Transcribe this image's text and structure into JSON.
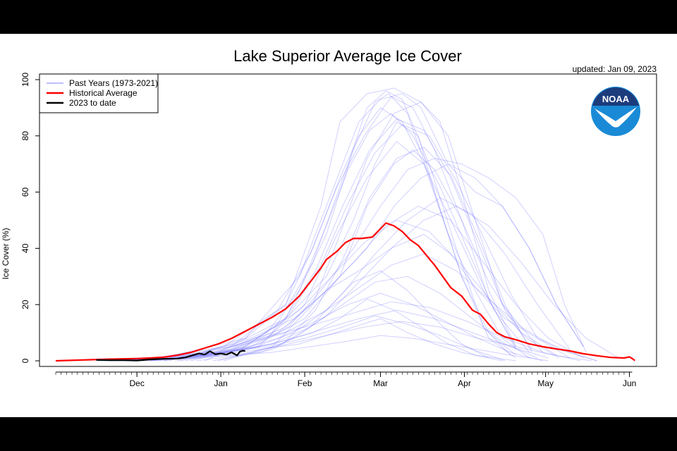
{
  "chart_data": {
    "type": "line",
    "title": "Lake Superior Average Ice Cover",
    "updated": "updated: Jan 09, 2023",
    "ylabel": "Ice Cover (%)",
    "xlabel": "",
    "ylim": [
      0,
      100
    ],
    "y_ticks": [
      0,
      20,
      40,
      60,
      80,
      100
    ],
    "x_ticks": [
      {
        "label": "Dec",
        "day": 30
      },
      {
        "label": "Jan",
        "day": 61
      },
      {
        "label": "Feb",
        "day": 92
      },
      {
        "label": "Mar",
        "day": 120
      },
      {
        "label": "Apr",
        "day": 151
      },
      {
        "label": "May",
        "day": 181
      },
      {
        "label": "Jun",
        "day": 212
      }
    ],
    "legend_position": "top-left",
    "legend": [
      {
        "label": "Past Years (1973-2021)",
        "color": "#aaaaff"
      },
      {
        "label": "Historical Average",
        "color": "#ff0000"
      },
      {
        "label": "2023 to date",
        "color": "#000000"
      }
    ],
    "logo": "noaa-logo",
    "series": [
      {
        "name": "Historical Average",
        "color": "#ff0000",
        "x": [
          0,
          10,
          20,
          30,
          35,
          40,
          45,
          50,
          55,
          60,
          65,
          70,
          75,
          80,
          85,
          90,
          94,
          98,
          100,
          104,
          107,
          110,
          113,
          117,
          120,
          122,
          125,
          128,
          131,
          134,
          137,
          140,
          143,
          146,
          150,
          154,
          157,
          160,
          163,
          166,
          170,
          175,
          180,
          185,
          190,
          195,
          200,
          205,
          210,
          212,
          213,
          214
        ],
        "y": [
          0,
          0.3,
          0.6,
          0.8,
          1.0,
          1.3,
          2.0,
          3.0,
          4.5,
          6.0,
          8.0,
          10.5,
          13.0,
          15.5,
          18.5,
          23.0,
          28.0,
          33.0,
          36.0,
          39.0,
          42.0,
          43.5,
          43.5,
          44.0,
          47.0,
          49.0,
          48.0,
          46.0,
          43.0,
          41.0,
          37.5,
          34.0,
          30.0,
          26.0,
          23.0,
          18.0,
          16.5,
          13.0,
          10.0,
          8.5,
          7.5,
          6.0,
          5.0,
          4.2,
          3.5,
          2.5,
          1.8,
          1.2,
          1.0,
          1.4,
          0.8,
          0.1
        ]
      },
      {
        "name": "2023 to date",
        "color": "#000000",
        "x": [
          15,
          20,
          25,
          30,
          35,
          40,
          45,
          48,
          50,
          53,
          55,
          57,
          59,
          61,
          63,
          65,
          67,
          68,
          69,
          70
        ],
        "y": [
          0.3,
          0.2,
          0.2,
          0.1,
          0.5,
          0.7,
          0.8,
          1.2,
          1.8,
          2.6,
          2.2,
          3.4,
          2.3,
          2.6,
          2.2,
          3.0,
          1.9,
          3.2,
          3.6,
          3.5
        ]
      }
    ],
    "past_years": [
      {
        "x": [
          25,
          60,
          85,
          100,
          110,
          118,
          123,
          130,
          140,
          150,
          160,
          170
        ],
        "y": [
          0,
          3,
          15,
          45,
          75,
          92,
          95,
          88,
          60,
          30,
          8,
          1
        ]
      },
      {
        "x": [
          20,
          55,
          80,
          95,
          108,
          115,
          122,
          128,
          138,
          148,
          158,
          168
        ],
        "y": [
          0,
          2,
          10,
          35,
          70,
          90,
          96,
          93,
          70,
          40,
          12,
          2
        ]
      },
      {
        "x": [
          30,
          62,
          85,
          98,
          105,
          115,
          125,
          135,
          145,
          155,
          165,
          180
        ],
        "y": [
          0,
          5,
          20,
          55,
          85,
          95,
          97,
          92,
          80,
          50,
          20,
          3
        ]
      },
      {
        "x": [
          35,
          70,
          90,
          102,
          112,
          120,
          128,
          135,
          145,
          155,
          165,
          175,
          185,
          195
        ],
        "y": [
          0,
          8,
          30,
          60,
          85,
          93,
          95,
          90,
          70,
          60,
          55,
          40,
          20,
          5
        ]
      },
      {
        "x": [
          40,
          75,
          88,
          100,
          110,
          118,
          126,
          134,
          140,
          150,
          160,
          170
        ],
        "y": [
          0,
          5,
          18,
          30,
          50,
          70,
          85,
          80,
          60,
          30,
          10,
          2
        ]
      },
      {
        "x": [
          30,
          65,
          85,
          100,
          115,
          125,
          135,
          145,
          155,
          165,
          175,
          185,
          195
        ],
        "y": [
          0,
          4,
          12,
          25,
          40,
          55,
          65,
          70,
          65,
          55,
          40,
          20,
          5
        ]
      },
      {
        "x": [
          25,
          50,
          70,
          85,
          100,
          110,
          120,
          130,
          140,
          150,
          160
        ],
        "y": [
          0,
          2,
          6,
          10,
          18,
          28,
          32,
          25,
          15,
          6,
          1
        ]
      },
      {
        "x": [
          20,
          45,
          65,
          80,
          95,
          105,
          115,
          125,
          135,
          145,
          155,
          170
        ],
        "y": [
          0,
          1,
          3,
          6,
          10,
          15,
          22,
          18,
          12,
          6,
          2,
          0
        ]
      },
      {
        "x": [
          15,
          40,
          60,
          75,
          90,
          100,
          110,
          120,
          130,
          140,
          150,
          165
        ],
        "y": [
          0,
          1,
          2,
          4,
          6,
          9,
          12,
          15,
          10,
          6,
          3,
          0
        ]
      },
      {
        "x": [
          45,
          70,
          85,
          95,
          105,
          112,
          120,
          128,
          136,
          145,
          155,
          165,
          175
        ],
        "y": [
          0,
          8,
          20,
          40,
          65,
          80,
          90,
          85,
          70,
          45,
          25,
          8,
          1
        ]
      },
      {
        "x": [
          50,
          75,
          92,
          105,
          115,
          125,
          132,
          140,
          150,
          160,
          172,
          185
        ],
        "y": [
          0,
          6,
          15,
          30,
          55,
          70,
          75,
          68,
          50,
          28,
          10,
          2
        ]
      },
      {
        "x": [
          28,
          55,
          72,
          88,
          100,
          112,
          124,
          136,
          146,
          156,
          166,
          178,
          190,
          200
        ],
        "y": [
          0,
          3,
          8,
          15,
          25,
          32,
          40,
          45,
          38,
          25,
          15,
          8,
          3,
          0
        ]
      },
      {
        "x": [
          35,
          60,
          78,
          92,
          104,
          115,
          126,
          136,
          146,
          158,
          170
        ],
        "y": [
          0,
          2,
          8,
          20,
          45,
          65,
          78,
          70,
          50,
          25,
          5
        ]
      },
      {
        "x": [
          22,
          48,
          68,
          82,
          96,
          108,
          120,
          132,
          144,
          156,
          168,
          180
        ],
        "y": [
          0,
          1,
          4,
          8,
          14,
          20,
          24,
          20,
          14,
          8,
          3,
          0
        ]
      },
      {
        "x": [
          60,
          80,
          95,
          105,
          115,
          125,
          135,
          142,
          150,
          160,
          170
        ],
        "y": [
          0,
          5,
          20,
          45,
          72,
          88,
          92,
          85,
          60,
          25,
          5
        ]
      },
      {
        "x": [
          40,
          65,
          82,
          97,
          110,
          122,
          134,
          146,
          158,
          170,
          182,
          195
        ],
        "y": [
          0,
          4,
          10,
          22,
          35,
          48,
          55,
          50,
          35,
          20,
          8,
          1
        ]
      },
      {
        "x": [
          18,
          42,
          62,
          78,
          92,
          106,
          118,
          130,
          142,
          154,
          166
        ],
        "y": [
          0,
          1,
          3,
          5,
          8,
          12,
          16,
          13,
          9,
          4,
          0
        ]
      },
      {
        "x": [
          55,
          78,
          90,
          100,
          108,
          116,
          124,
          132,
          142,
          152,
          162,
          175
        ],
        "y": [
          0,
          10,
          25,
          48,
          68,
          82,
          88,
          80,
          62,
          40,
          18,
          3
        ]
      },
      {
        "x": [
          32,
          58,
          74,
          88,
          100,
          112,
          124,
          136,
          148,
          160,
          172,
          186,
          200
        ],
        "y": [
          0,
          2,
          5,
          10,
          18,
          26,
          34,
          38,
          32,
          22,
          12,
          4,
          0
        ]
      },
      {
        "x": [
          48,
          72,
          86,
          98,
          110,
          120,
          130,
          140,
          150,
          160,
          170,
          180,
          188,
          196
        ],
        "y": [
          0,
          5,
          12,
          25,
          40,
          55,
          68,
          72,
          70,
          65,
          58,
          45,
          20,
          3
        ]
      },
      {
        "x": [
          38,
          62,
          80,
          94,
          106,
          118,
          130,
          142,
          154,
          166,
          178
        ],
        "y": [
          0,
          3,
          6,
          12,
          20,
          28,
          30,
          24,
          15,
          6,
          1
        ]
      },
      {
        "x": [
          26,
          50,
          66,
          80,
          94,
          108,
          120,
          132,
          144,
          156,
          168,
          182
        ],
        "y": [
          0,
          1,
          2,
          3,
          5,
          7,
          9,
          8,
          6,
          4,
          2,
          0
        ]
      },
      {
        "x": [
          44,
          68,
          84,
          96,
          106,
          116,
          126,
          136,
          146,
          156,
          166,
          176
        ],
        "y": [
          0,
          4,
          14,
          32,
          55,
          75,
          86,
          82,
          65,
          42,
          18,
          4
        ]
      },
      {
        "x": [
          52,
          76,
          88,
          100,
          112,
          124,
          136,
          148,
          160,
          172,
          184,
          196,
          208
        ],
        "y": [
          0,
          3,
          8,
          16,
          28,
          40,
          50,
          55,
          48,
          35,
          20,
          8,
          1
        ]
      },
      {
        "x": [
          34,
          56,
          70,
          84,
          98,
          112,
          126,
          140,
          154,
          168,
          182
        ],
        "y": [
          0,
          2,
          4,
          7,
          11,
          15,
          18,
          15,
          10,
          5,
          1
        ]
      },
      {
        "x": [
          42,
          66,
          82,
          94,
          104,
          114,
          124,
          132,
          140,
          150,
          160,
          170
        ],
        "y": [
          0,
          6,
          18,
          38,
          62,
          80,
          94,
          90,
          75,
          50,
          22,
          4
        ]
      },
      {
        "x": [
          58,
          80,
          94,
          106,
          118,
          130,
          142,
          154,
          166,
          178,
          190
        ],
        "y": [
          0,
          4,
          12,
          24,
          38,
          50,
          58,
          52,
          38,
          20,
          4
        ]
      },
      {
        "x": [
          24,
          46,
          64,
          80,
          96,
          110,
          124,
          138,
          152,
          166,
          180,
          194
        ],
        "y": [
          0,
          2,
          5,
          9,
          13,
          17,
          21,
          19,
          14,
          8,
          3,
          0
        ]
      },
      {
        "x": [
          36,
          60,
          76,
          90,
          102,
          114,
          126,
          138,
          150,
          162,
          174,
          186
        ],
        "y": [
          0,
          3,
          9,
          18,
          30,
          42,
          50,
          46,
          34,
          20,
          8,
          1
        ]
      },
      {
        "x": [
          46,
          70,
          86,
          98,
          108,
          118,
          128,
          138,
          148,
          158,
          168,
          178,
          190
        ],
        "y": [
          0,
          5,
          16,
          34,
          56,
          74,
          84,
          80,
          64,
          44,
          24,
          8,
          1
        ]
      },
      {
        "x": [
          62,
          84,
          96,
          106,
          116,
          126,
          136,
          146,
          156,
          166,
          176
        ],
        "y": [
          0,
          6,
          18,
          36,
          58,
          72,
          76,
          66,
          44,
          20,
          3
        ]
      },
      {
        "x": [
          30,
          54,
          72,
          86,
          100,
          114,
          128,
          142,
          156,
          170,
          184,
          198
        ],
        "y": [
          0,
          1,
          3,
          6,
          9,
          12,
          14,
          12,
          8,
          5,
          2,
          0
        ]
      }
    ]
  }
}
